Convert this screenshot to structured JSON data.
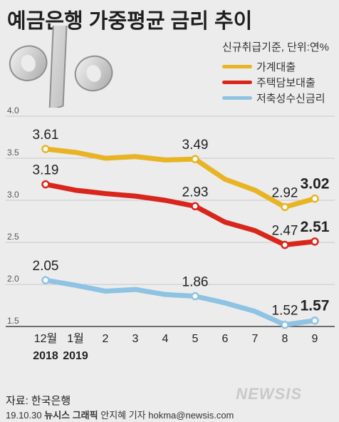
{
  "title": "예금은행 가중평균 금리 추이",
  "legend": {
    "note": "신규취급기준, 단위:연%",
    "items": [
      {
        "label": "가계대출",
        "color": "#e8b423"
      },
      {
        "label": "주택담보대출",
        "color": "#d9261c"
      },
      {
        "label": "저축성수신금리",
        "color": "#8ec3e3"
      }
    ]
  },
  "chart_data": {
    "type": "line",
    "x": [
      "12월",
      "1월",
      "2",
      "3",
      "4",
      "5",
      "6",
      "7",
      "8",
      "9"
    ],
    "x_sublabels": [
      "2018",
      "2019",
      "",
      "",
      "",
      "",
      "",
      "",
      "",
      ""
    ],
    "yticks": [
      "4.0",
      "3.5",
      "3.0",
      "2.5",
      "2.0",
      "1.5"
    ],
    "ylim": [
      1.5,
      4.0
    ],
    "grid": true,
    "series": [
      {
        "name": "가계대출",
        "color": "#e8b423",
        "values": [
          3.61,
          3.57,
          3.5,
          3.52,
          3.48,
          3.49,
          3.25,
          3.12,
          2.92,
          3.02
        ],
        "labels": [
          "3.61",
          "",
          "",
          "",
          "",
          "3.49",
          "",
          "",
          "2.92",
          "3.02"
        ]
      },
      {
        "name": "주택담보대출",
        "color": "#d9261c",
        "values": [
          3.19,
          3.12,
          3.08,
          3.05,
          3.0,
          2.93,
          2.74,
          2.64,
          2.47,
          2.51
        ],
        "labels": [
          "3.19",
          "",
          "",
          "",
          "",
          "2.93",
          "",
          "",
          "2.47",
          "2.51"
        ]
      },
      {
        "name": "저축성수신금리",
        "color": "#8ec3e3",
        "values": [
          2.05,
          1.99,
          1.92,
          1.94,
          1.88,
          1.86,
          1.78,
          1.68,
          1.52,
          1.57
        ],
        "labels": [
          "2.05",
          "",
          "",
          "",
          "",
          "1.86",
          "",
          "",
          "1.52",
          "1.57"
        ]
      }
    ]
  },
  "footer": {
    "source": "자료: 한국은행",
    "date": "19.10.30",
    "agency": "뉴시스 그래픽",
    "author": "안지혜 기자 hokma@newsis.com",
    "logo": "NEWSIS"
  }
}
